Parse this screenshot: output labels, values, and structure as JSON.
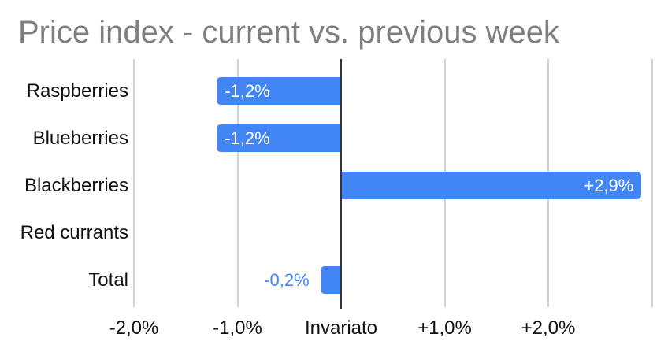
{
  "chart_data": {
    "type": "bar",
    "orientation": "horizontal",
    "title": "Price index - current vs. previous week",
    "categories": [
      "Raspberries",
      "Blueberries",
      "Blackberries",
      "Red currants",
      "Total"
    ],
    "values": [
      -1.2,
      -1.2,
      2.9,
      0,
      -0.2
    ],
    "value_labels": [
      "-1,2%",
      "-1,2%",
      "+2,9%",
      "",
      "-0,2%"
    ],
    "x_ticks": [
      {
        "value": -2,
        "label": "-2,0%"
      },
      {
        "value": -1,
        "label": "-1,0%"
      },
      {
        "value": 0,
        "label": "Invariato"
      },
      {
        "value": 1,
        "label": "+1,0%"
      },
      {
        "value": 2,
        "label": "+2,0%"
      },
      {
        "value": 3,
        "label": ""
      }
    ],
    "xlim": [
      -2,
      3
    ],
    "grid": true,
    "legend": "none"
  },
  "colors": {
    "bar": "#4285f4",
    "bar_label_inside": "#ffffff",
    "bar_label_outside": "#4285f4",
    "gridline": "#d2d2d2",
    "zero_axis": "#333333",
    "title": "#7f7f7f",
    "axis_label": "#111111",
    "category_label": "#111111",
    "background": "#ffffff"
  }
}
